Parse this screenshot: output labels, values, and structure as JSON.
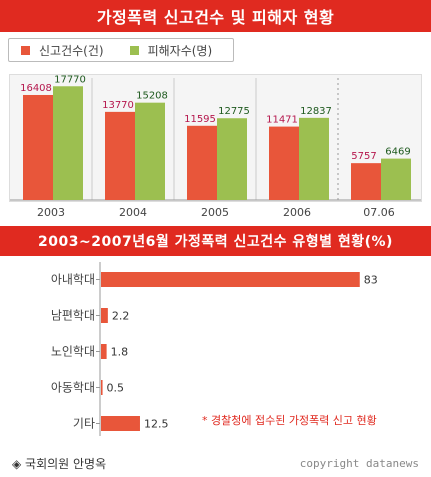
{
  "title_top": "가정폭력 신고건수 및 피해자 현황",
  "title_bottom": "2003~2007년6월 가정폭력 신고건수 유형별 현황(%)",
  "note": "* 경찰청에 접수된 가정폭력 신고 현황",
  "footer_left": "◈ 국회의원 안명옥",
  "footer_right": "copyright datanews",
  "colors": {
    "accent": "#e02a20",
    "reports": "#e8563a",
    "victims": "#9cbf50"
  },
  "chart_data": [
    {
      "type": "bar",
      "categories": [
        "2003",
        "2004",
        "2005",
        "2006",
        "07.06"
      ],
      "series": [
        {
          "name": "신고건수(건)",
          "values": [
            16408,
            13770,
            11595,
            11471,
            5757
          ]
        },
        {
          "name": "피해자수(명)",
          "values": [
            17770,
            15208,
            12775,
            12837,
            6469
          ]
        }
      ],
      "ylim": [
        0,
        20000
      ],
      "legend": "top-left",
      "title": "",
      "xlabel": "",
      "ylabel": ""
    },
    {
      "type": "bar",
      "orientation": "horizontal",
      "categories": [
        "아내학대",
        "남편학대",
        "노인학대",
        "아동학대",
        "기타"
      ],
      "values": [
        83,
        2.2,
        1.8,
        0.5,
        12.5
      ],
      "labels": [
        "83",
        "2.2",
        "1.8",
        "0.5",
        "12.5"
      ],
      "xlim": [
        0,
        85
      ],
      "title": "",
      "xlabel": "",
      "ylabel": ""
    }
  ]
}
